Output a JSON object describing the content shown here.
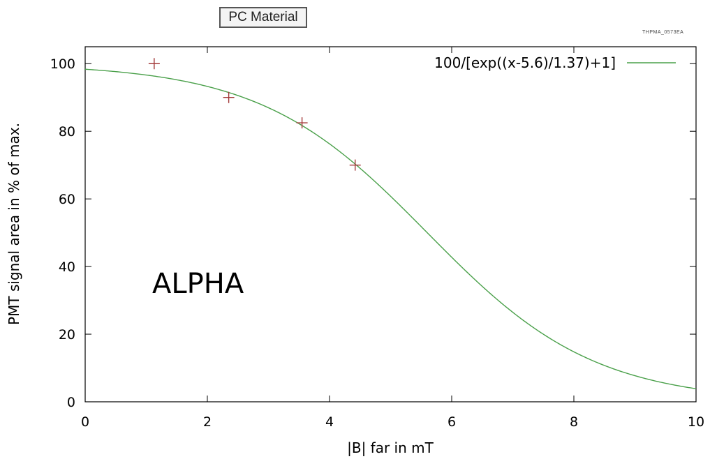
{
  "header": {
    "tag_label": "PC Material",
    "code_label": "THPMA_0573EA"
  },
  "colors": {
    "curve": "#4aa04a",
    "points": "#a33a3a",
    "axes": "#000000"
  },
  "chart_data": {
    "type": "scatter",
    "xlabel": "|B| far in mT",
    "ylabel": "PMT signal area in % of max.",
    "xlim": [
      0,
      10
    ],
    "ylim": [
      0,
      105
    ],
    "xticks": [
      0,
      2,
      4,
      6,
      8,
      10
    ],
    "yticks": [
      0,
      20,
      40,
      60,
      80,
      100
    ],
    "grid": false,
    "legend_position": "top-right",
    "annotation": "ALPHA",
    "series": [
      {
        "kind": "points",
        "x": [
          1.13,
          2.35,
          3.55,
          4.42
        ],
        "y": [
          100,
          90,
          82.5,
          70
        ]
      },
      {
        "kind": "function",
        "name": "100/[exp((x-5.6)/1.37)+1]",
        "center": 5.6,
        "width": 1.37,
        "amplitude": 100
      }
    ]
  }
}
